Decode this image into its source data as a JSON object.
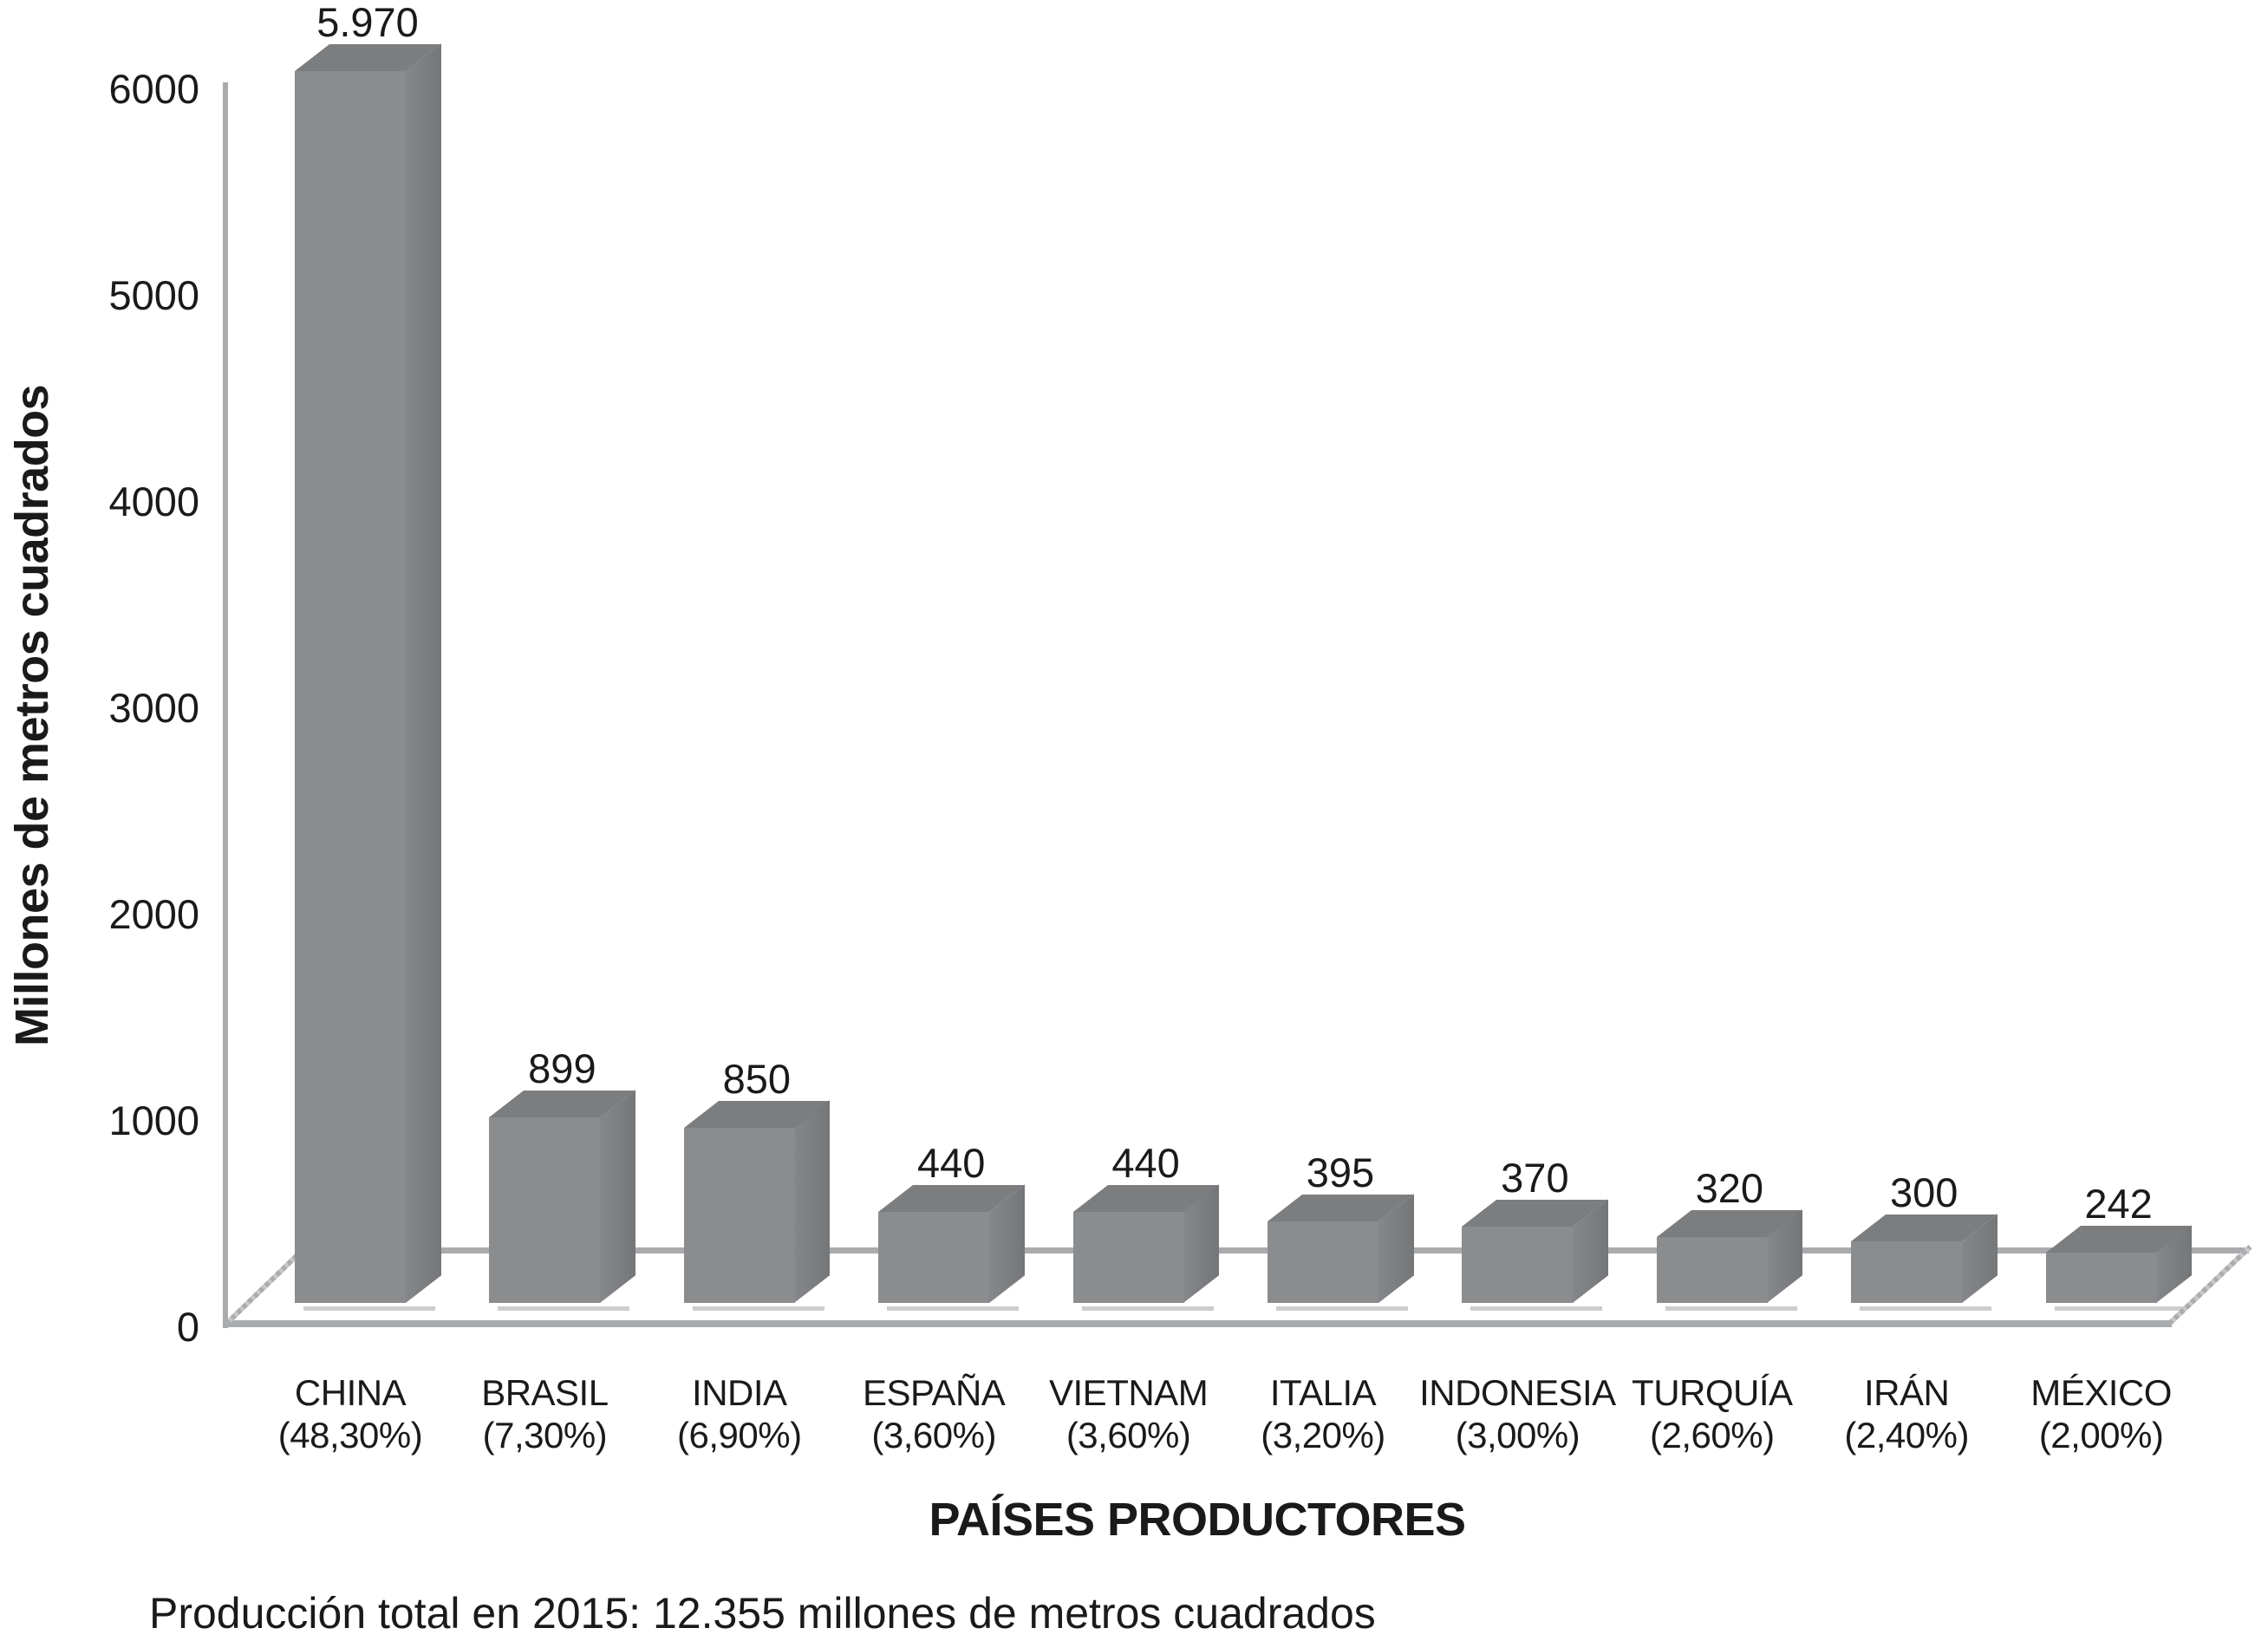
{
  "chart_data": {
    "type": "bar",
    "style": "3d-column",
    "title": "",
    "xlabel": "PAÍSES PRODUCTORES",
    "ylabel": "Millones de metros cuadrados",
    "ylim": [
      0,
      6000
    ],
    "yticks": [
      0,
      1000,
      2000,
      3000,
      4000,
      5000,
      6000
    ],
    "grid": "none",
    "legend": "none",
    "categories": [
      "CHINA",
      "BRASIL",
      "INDIA",
      "ESPAÑA",
      "VIETNAM",
      "ITALIA",
      "INDONESIA",
      "TURQUÍA",
      "IRÁN",
      "MÉXICO"
    ],
    "category_percent_labels": [
      "(48,30%)",
      "(7,30%)",
      "(6,90%)",
      "(3,60%)",
      "(3,60%)",
      "(3,20%)",
      "(3,00%)",
      "(2,60%)",
      "(2,40%)",
      "(2,00%)"
    ],
    "values": [
      5970,
      899,
      850,
      440,
      440,
      395,
      370,
      320,
      300,
      242
    ],
    "bar_value_labels": [
      "5.970",
      "899",
      "850",
      "440",
      "440",
      "395",
      "370",
      "320",
      "300",
      "242"
    ],
    "colors": {
      "bar_front": "#8A8C8E",
      "bar_top": "#7B7D7F",
      "bar_side_light": "#85878A",
      "bar_side_dark": "#747678",
      "axis_line": "#A9ABAD",
      "text": "#1A1A1A",
      "background": "#FFFFFF"
    }
  },
  "footer": {
    "text": "Producción total en 2015: 12.355 millones de metros cuadrados"
  }
}
